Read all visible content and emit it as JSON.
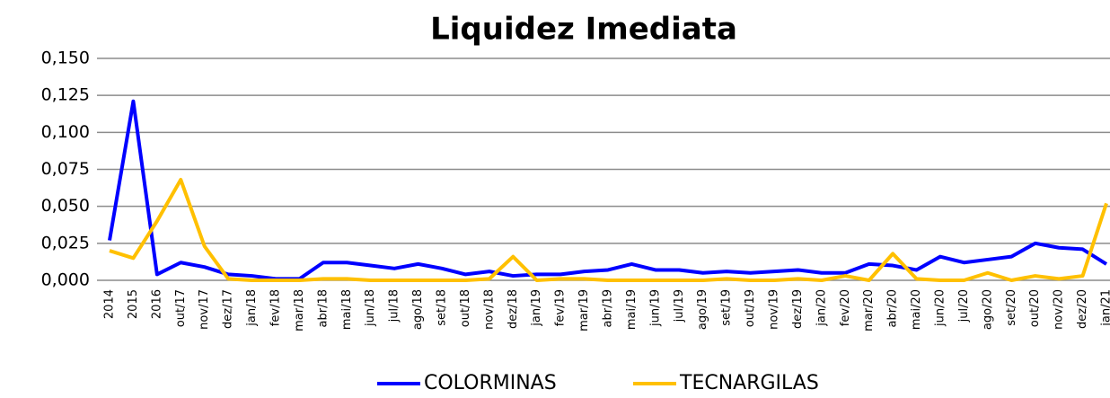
{
  "chart_data": {
    "type": "line",
    "title": "Liquidez Imediata",
    "categories": [
      "2014",
      "2015",
      "2016",
      "out/17",
      "nov/17",
      "dez/17",
      "jan/18",
      "fev/18",
      "mar/18",
      "abr/18",
      "mai/18",
      "jun/18",
      "jul/18",
      "ago/18",
      "set/18",
      "out/18",
      "nov/18",
      "dez/18",
      "jan/19",
      "fev/19",
      "mar/19",
      "abr/19",
      "mai/19",
      "jun/19",
      "jul/19",
      "ago/19",
      "set/19",
      "out/19",
      "nov/19",
      "dez/19",
      "jan/20",
      "fev/20",
      "mar/20",
      "abr/20",
      "mai/20",
      "jun/20",
      "jul/20",
      "ago/20",
      "set/20",
      "out/20",
      "nov/20",
      "dez/20",
      "jan/21"
    ],
    "series": [
      {
        "name": "COLORMINAS",
        "color": "#0000ff",
        "values": [
          0.027,
          0.121,
          0.004,
          0.012,
          0.009,
          0.004,
          0.003,
          0.001,
          0.001,
          0.012,
          0.012,
          0.01,
          0.008,
          0.011,
          0.008,
          0.004,
          0.006,
          0.003,
          0.004,
          0.004,
          0.006,
          0.007,
          0.011,
          0.007,
          0.007,
          0.005,
          0.006,
          0.005,
          0.006,
          0.007,
          0.005,
          0.005,
          0.011,
          0.01,
          0.007,
          0.016,
          0.012,
          0.014,
          0.016,
          0.025,
          0.022,
          0.021,
          0.011
        ]
      },
      {
        "name": "TECNARGILAS",
        "color": "#ffc000",
        "values": [
          0.02,
          0.015,
          0.04,
          0.068,
          0.023,
          0.001,
          0,
          0,
          0,
          0.001,
          0.001,
          0,
          0,
          0,
          0,
          0,
          0.001,
          0.016,
          0,
          0.001,
          0.001,
          0,
          0,
          0,
          0,
          0,
          0.001,
          0,
          0,
          0.001,
          0,
          0.003,
          0,
          0.018,
          0.001,
          0,
          0,
          0.005,
          0,
          0.003,
          0.001,
          0.003,
          0.052
        ]
      }
    ],
    "ylim": [
      0,
      0.15
    ],
    "yticks": [
      {
        "value": 0,
        "label": "0,000"
      },
      {
        "value": 0.025,
        "label": "0,025"
      },
      {
        "value": 0.05,
        "label": "0,050"
      },
      {
        "value": 0.075,
        "label": "0,075"
      },
      {
        "value": 0.1,
        "label": "0,100"
      },
      {
        "value": 0.125,
        "label": "0,125"
      },
      {
        "value": 0.15,
        "label": "0,150"
      }
    ],
    "grid": true,
    "legend": "bottom"
  }
}
